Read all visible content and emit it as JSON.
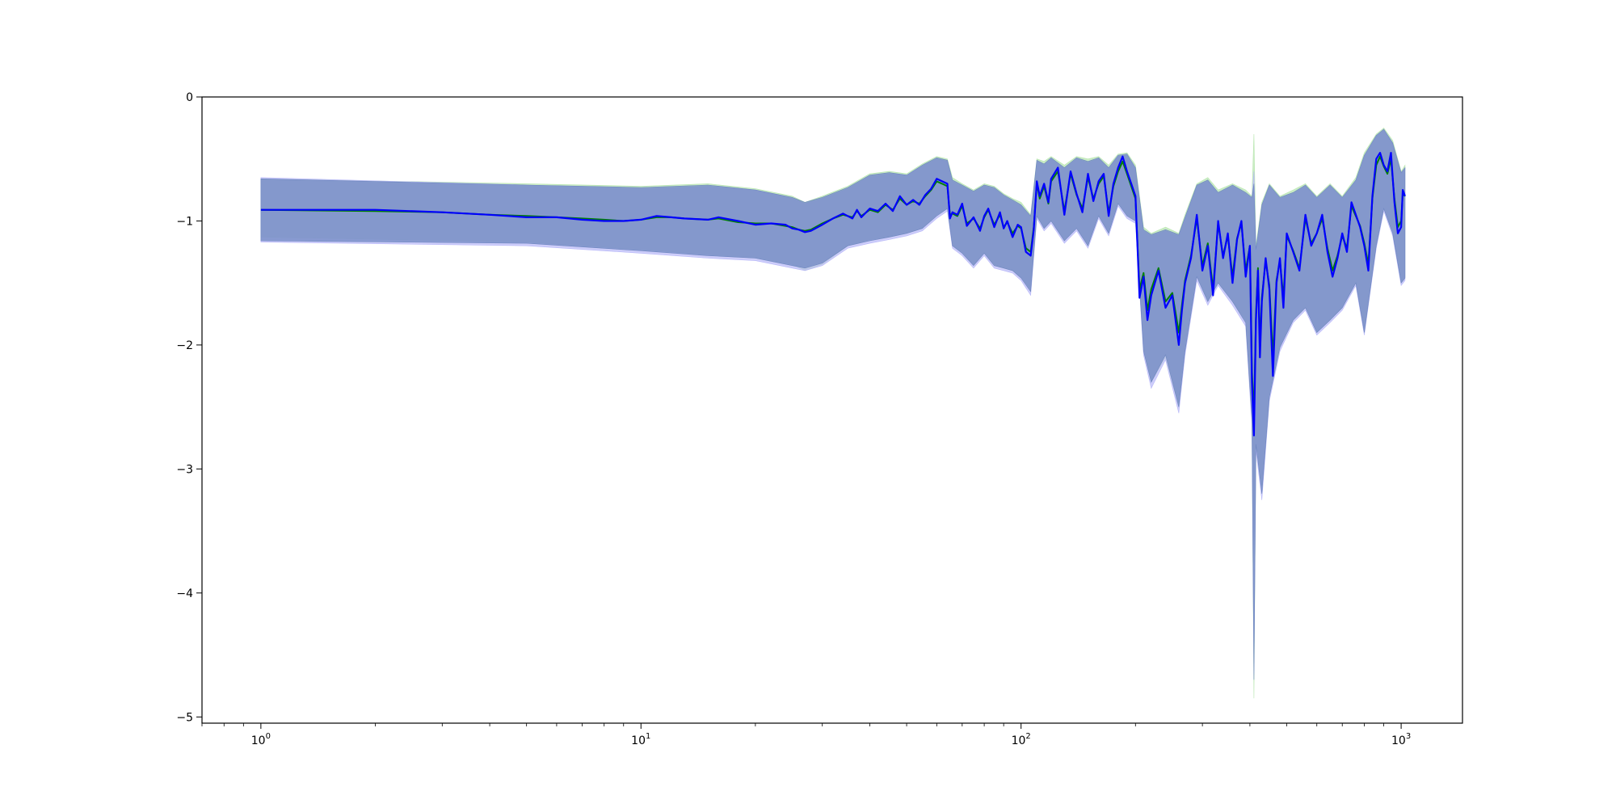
{
  "chart_data": {
    "type": "line",
    "title": "",
    "xlabel": "",
    "ylabel": "",
    "x_scale": "log",
    "xlim": [
      0.7,
      1450
    ],
    "ylim": [
      -5.05,
      0
    ],
    "x_ticks": [
      {
        "value": 1,
        "base": "10",
        "exp": "0"
      },
      {
        "value": 10,
        "base": "10",
        "exp": "1"
      },
      {
        "value": 100,
        "base": "10",
        "exp": "2"
      },
      {
        "value": 1000,
        "base": "10",
        "exp": "3"
      }
    ],
    "y_ticks": [
      {
        "value": 0,
        "label": "0"
      },
      {
        "value": -1,
        "label": "−1"
      },
      {
        "value": -2,
        "label": "−2"
      },
      {
        "value": -3,
        "label": "−3"
      },
      {
        "value": -4,
        "label": "−4"
      },
      {
        "value": -5,
        "label": "−5"
      }
    ],
    "grid": false,
    "legend": "none",
    "colors": {
      "blue_line": "#0000ff",
      "green_line": "#008000",
      "blue_band": "#6e86c0",
      "green_band": "#b8e6b0",
      "violet_band": "#b8b8f8"
    },
    "series": [
      {
        "color": "blue",
        "x": [
          1,
          2,
          3,
          4,
          5,
          6,
          7,
          8,
          9,
          10,
          11,
          12,
          13,
          15,
          16,
          18,
          20,
          22,
          24,
          25,
          26,
          27,
          28,
          30,
          32,
          34,
          36,
          37,
          38,
          40,
          42,
          44,
          46,
          48,
          50,
          52,
          54,
          56,
          58,
          60,
          62,
          64,
          65,
          66,
          68,
          70,
          72,
          75,
          78,
          80,
          82,
          85,
          88,
          90,
          92,
          95,
          98,
          100,
          103,
          106,
          108,
          110,
          112,
          115,
          118,
          120,
          125,
          130,
          135,
          140,
          145,
          150,
          155,
          160,
          165,
          170,
          175,
          180,
          185,
          190,
          195,
          200,
          205,
          210,
          215,
          220,
          230,
          240,
          250,
          260,
          265,
          270,
          280,
          290,
          300,
          310,
          320,
          330,
          340,
          350,
          360,
          370,
          380,
          390,
          400,
          405,
          410,
          415,
          420,
          425,
          430,
          440,
          450,
          460,
          470,
          480,
          490,
          500,
          520,
          540,
          560,
          580,
          600,
          620,
          640,
          660,
          680,
          700,
          720,
          740,
          760,
          780,
          800,
          820,
          840,
          860,
          880,
          900,
          920,
          940,
          960,
          980,
          1000,
          1010,
          1024
        ],
        "y": [
          -0.91,
          -0.91,
          -0.93,
          -0.95,
          -0.97,
          -0.97,
          -0.99,
          -1.0,
          -1.0,
          -0.99,
          -0.96,
          -0.97,
          -0.98,
          -0.99,
          -0.97,
          -1.0,
          -1.03,
          -1.02,
          -1.03,
          -1.06,
          -1.07,
          -1.09,
          -1.08,
          -1.03,
          -0.98,
          -0.94,
          -0.98,
          -0.91,
          -0.97,
          -0.9,
          -0.92,
          -0.86,
          -0.92,
          -0.8,
          -0.87,
          -0.83,
          -0.87,
          -0.79,
          -0.74,
          -0.66,
          -0.68,
          -0.7,
          -0.98,
          -0.93,
          -0.95,
          -0.86,
          -1.04,
          -0.97,
          -1.08,
          -0.96,
          -0.9,
          -1.05,
          -0.93,
          -1.06,
          -1.0,
          -1.13,
          -1.03,
          -1.05,
          -1.25,
          -1.28,
          -1.07,
          -0.68,
          -0.8,
          -0.7,
          -0.85,
          -0.66,
          -0.57,
          -0.95,
          -0.6,
          -0.78,
          -0.93,
          -0.62,
          -0.84,
          -0.68,
          -0.62,
          -0.96,
          -0.7,
          -0.57,
          -0.48,
          -0.6,
          -0.7,
          -0.8,
          -1.62,
          -1.45,
          -1.8,
          -1.6,
          -1.4,
          -1.7,
          -1.6,
          -2.0,
          -1.72,
          -1.5,
          -1.3,
          -0.95,
          -1.4,
          -1.2,
          -1.6,
          -1.0,
          -1.3,
          -1.1,
          -1.5,
          -1.15,
          -1.0,
          -1.45,
          -1.2,
          -2.3,
          -2.73,
          -1.8,
          -1.4,
          -2.1,
          -1.65,
          -1.3,
          -1.55,
          -2.25,
          -1.5,
          -1.3,
          -1.7,
          -1.1,
          -1.25,
          -1.4,
          -0.95,
          -1.2,
          -1.1,
          -0.95,
          -1.25,
          -1.45,
          -1.3,
          -1.1,
          -1.25,
          -0.85,
          -0.95,
          -1.05,
          -1.2,
          -1.4,
          -0.8,
          -0.5,
          -0.45,
          -0.55,
          -0.6,
          -0.45,
          -0.85,
          -1.1,
          -1.05,
          -0.75,
          -0.8
        ]
      },
      {
        "color": "green",
        "x": [
          1,
          2,
          3,
          4,
          5,
          6,
          7,
          8,
          9,
          10,
          11,
          12,
          13,
          15,
          16,
          18,
          20,
          22,
          24,
          25,
          26,
          27,
          28,
          30,
          32,
          34,
          36,
          37,
          38,
          40,
          42,
          44,
          46,
          48,
          50,
          52,
          54,
          56,
          58,
          60,
          62,
          64,
          65,
          66,
          68,
          70,
          72,
          75,
          78,
          80,
          82,
          85,
          88,
          90,
          92,
          95,
          98,
          100,
          103,
          106,
          108,
          110,
          112,
          115,
          118,
          120,
          125,
          130,
          135,
          140,
          145,
          150,
          155,
          160,
          165,
          170,
          175,
          180,
          185,
          190,
          195,
          200,
          205,
          210,
          215,
          220,
          230,
          240,
          250,
          260,
          265,
          270,
          280,
          290,
          300,
          310,
          320,
          330,
          340,
          350,
          360,
          370,
          380,
          390,
          400,
          405,
          410,
          415,
          420,
          425,
          430,
          440,
          450,
          460,
          470,
          480,
          490,
          500,
          520,
          540,
          560,
          580,
          600,
          620,
          640,
          660,
          680,
          700,
          720,
          740,
          760,
          780,
          800,
          820,
          840,
          860,
          880,
          900,
          920,
          940,
          960,
          980,
          1000,
          1010,
          1024
        ],
        "y": [
          -0.91,
          -0.92,
          -0.93,
          -0.95,
          -0.96,
          -0.97,
          -0.98,
          -0.99,
          -1.0,
          -0.99,
          -0.97,
          -0.97,
          -0.98,
          -0.99,
          -0.98,
          -1.01,
          -1.02,
          -1.02,
          -1.04,
          -1.05,
          -1.07,
          -1.08,
          -1.07,
          -1.02,
          -0.98,
          -0.95,
          -0.97,
          -0.92,
          -0.96,
          -0.91,
          -0.93,
          -0.87,
          -0.91,
          -0.82,
          -0.87,
          -0.84,
          -0.86,
          -0.8,
          -0.75,
          -0.68,
          -0.7,
          -0.72,
          -0.95,
          -0.94,
          -0.96,
          -0.88,
          -1.02,
          -0.98,
          -1.06,
          -0.97,
          -0.91,
          -1.03,
          -0.95,
          -1.05,
          -1.01,
          -1.1,
          -1.04,
          -1.06,
          -1.22,
          -1.25,
          -1.05,
          -0.7,
          -0.82,
          -0.72,
          -0.86,
          -0.68,
          -0.6,
          -0.92,
          -0.62,
          -0.79,
          -0.9,
          -0.65,
          -0.82,
          -0.7,
          -0.64,
          -0.93,
          -0.72,
          -0.6,
          -0.52,
          -0.62,
          -0.72,
          -0.82,
          -1.55,
          -1.42,
          -1.72,
          -1.55,
          -1.38,
          -1.65,
          -1.58,
          -1.9,
          -1.68,
          -1.48,
          -1.28,
          -0.98,
          -1.36,
          -1.18,
          -1.55,
          -1.02,
          -1.28,
          -1.12,
          -1.45,
          -1.14,
          -1.02,
          -1.4,
          -1.2,
          -2.2,
          -2.6,
          -1.75,
          -1.38,
          -2.0,
          -1.62,
          -1.32,
          -1.52,
          -2.1,
          -1.48,
          -1.32,
          -1.62,
          -1.12,
          -1.24,
          -1.38,
          -0.98,
          -1.18,
          -1.1,
          -0.98,
          -1.22,
          -1.4,
          -1.28,
          -1.12,
          -1.22,
          -0.88,
          -0.96,
          -1.04,
          -1.18,
          -1.35,
          -0.82,
          -0.55,
          -0.48,
          -0.56,
          -0.62,
          -0.5,
          -0.82,
          -1.05,
          -1.0,
          -0.78,
          -0.8
        ]
      }
    ],
    "bands": [
      {
        "color": "green",
        "x": [
          1,
          5,
          10,
          15,
          20,
          25,
          27,
          30,
          35,
          40,
          45,
          50,
          55,
          60,
          64,
          66,
          70,
          75,
          80,
          85,
          90,
          95,
          100,
          106,
          110,
          115,
          120,
          130,
          140,
          150,
          160,
          170,
          180,
          190,
          200,
          210,
          220,
          240,
          260,
          270,
          290,
          310,
          330,
          360,
          390,
          405,
          410,
          415,
          430,
          450,
          480,
          520,
          560,
          600,
          650,
          700,
          760,
          800,
          860,
          900,
          950,
          1000,
          1024
        ],
        "upper": [
          -0.66,
          -0.7,
          -0.72,
          -0.7,
          -0.74,
          -0.8,
          -0.85,
          -0.8,
          -0.72,
          -0.62,
          -0.6,
          -0.62,
          -0.54,
          -0.48,
          -0.5,
          -0.65,
          -0.7,
          -0.75,
          -0.7,
          -0.72,
          -0.78,
          -0.82,
          -0.85,
          -0.95,
          -0.5,
          -0.52,
          -0.48,
          -0.55,
          -0.48,
          -0.5,
          -0.48,
          -0.55,
          -0.46,
          -0.45,
          -0.55,
          -1.05,
          -1.1,
          -1.05,
          -1.1,
          -0.95,
          -0.7,
          -0.65,
          -0.75,
          -0.7,
          -0.75,
          -0.8,
          -0.3,
          -1.2,
          -0.85,
          -0.7,
          -0.8,
          -0.75,
          -0.7,
          -0.8,
          -0.7,
          -0.8,
          -0.65,
          -0.45,
          -0.3,
          -0.25,
          -0.35,
          -0.6,
          -0.55
        ],
        "lower": [
          -1.13,
          -1.17,
          -1.23,
          -1.27,
          -1.3,
          -1.35,
          -1.4,
          -1.35,
          -1.2,
          -1.15,
          -1.13,
          -1.1,
          -1.06,
          -0.95,
          -0.9,
          -1.2,
          -1.25,
          -1.35,
          -1.25,
          -1.35,
          -1.38,
          -1.4,
          -1.45,
          -1.55,
          -0.95,
          -1.05,
          -1.0,
          -1.15,
          -1.05,
          -1.2,
          -0.95,
          -1.1,
          -0.85,
          -0.95,
          -1.0,
          -2.05,
          -2.3,
          -2.1,
          -2.5,
          -2.05,
          -1.45,
          -1.65,
          -1.5,
          -1.65,
          -1.8,
          -2.6,
          -4.85,
          -2.8,
          -3.2,
          -2.4,
          -2.0,
          -1.8,
          -1.7,
          -1.9,
          -1.8,
          -1.7,
          -1.5,
          -1.9,
          -1.2,
          -0.9,
          -1.1,
          -1.5,
          -1.45
        ]
      },
      {
        "color": "violet",
        "x": [
          1,
          5,
          10,
          15,
          20,
          25,
          27,
          30,
          35,
          40,
          45,
          50,
          55,
          60,
          64,
          66,
          70,
          75,
          80,
          85,
          90,
          95,
          100,
          106,
          110,
          115,
          120,
          130,
          140,
          150,
          160,
          170,
          180,
          190,
          200,
          210,
          220,
          240,
          260,
          270,
          290,
          310,
          330,
          360,
          390,
          405,
          410,
          415,
          430,
          450,
          480,
          520,
          560,
          600,
          650,
          700,
          760,
          800,
          860,
          900,
          950,
          1000,
          1024
        ],
        "upper": [
          -0.65,
          -0.71,
          -0.74,
          -0.72,
          -0.75,
          -0.82,
          -0.86,
          -0.82,
          -0.74,
          -0.64,
          -0.62,
          -0.63,
          -0.56,
          -0.5,
          -0.52,
          -0.68,
          -0.72,
          -0.77,
          -0.72,
          -0.74,
          -0.8,
          -0.84,
          -0.88,
          -0.97,
          -0.52,
          -0.55,
          -0.5,
          -0.58,
          -0.5,
          -0.53,
          -0.5,
          -0.58,
          -0.48,
          -0.47,
          -0.58,
          -1.08,
          -1.12,
          -1.08,
          -1.12,
          -0.98,
          -0.72,
          -0.68,
          -0.78,
          -0.72,
          -0.78,
          -0.82,
          -0.6,
          -1.25,
          -0.88,
          -0.72,
          -0.82,
          -0.78,
          -0.72,
          -0.82,
          -0.72,
          -0.82,
          -0.68,
          -0.48,
          -0.32,
          -0.27,
          -0.38,
          -0.62,
          -0.58
        ],
        "lower": [
          -1.17,
          -1.2,
          -1.26,
          -1.3,
          -1.32,
          -1.38,
          -1.4,
          -1.36,
          -1.22,
          -1.18,
          -1.15,
          -1.12,
          -1.08,
          -0.98,
          -0.92,
          -1.22,
          -1.28,
          -1.38,
          -1.28,
          -1.38,
          -1.4,
          -1.42,
          -1.48,
          -1.6,
          -0.98,
          -1.08,
          -1.02,
          -1.18,
          -1.08,
          -1.22,
          -0.98,
          -1.12,
          -0.88,
          -0.98,
          -1.02,
          -2.08,
          -2.35,
          -2.12,
          -2.55,
          -2.08,
          -1.48,
          -1.68,
          -1.52,
          -1.68,
          -1.85,
          -2.65,
          -4.65,
          -2.85,
          -3.25,
          -2.45,
          -2.05,
          -1.82,
          -1.72,
          -1.92,
          -1.82,
          -1.72,
          -1.52,
          -1.92,
          -1.22,
          -0.92,
          -1.12,
          -1.52,
          -1.48
        ]
      },
      {
        "color": "blue",
        "x": [
          1,
          5,
          10,
          15,
          20,
          25,
          27,
          30,
          35,
          40,
          45,
          50,
          55,
          60,
          64,
          66,
          70,
          75,
          80,
          85,
          90,
          95,
          100,
          106,
          110,
          115,
          120,
          130,
          140,
          150,
          160,
          170,
          180,
          190,
          200,
          210,
          220,
          240,
          260,
          270,
          290,
          310,
          330,
          360,
          390,
          405,
          410,
          415,
          430,
          450,
          480,
          520,
          560,
          600,
          650,
          700,
          760,
          800,
          860,
          900,
          950,
          1000,
          1024
        ],
        "upper": [
          -0.66,
          -0.71,
          -0.73,
          -0.71,
          -0.75,
          -0.81,
          -0.85,
          -0.81,
          -0.73,
          -0.63,
          -0.61,
          -0.63,
          -0.55,
          -0.49,
          -0.51,
          -0.67,
          -0.71,
          -0.76,
          -0.71,
          -0.73,
          -0.79,
          -0.83,
          -0.87,
          -0.96,
          -0.51,
          -0.54,
          -0.49,
          -0.57,
          -0.49,
          -0.52,
          -0.49,
          -0.57,
          -0.47,
          -0.46,
          -0.57,
          -1.07,
          -1.11,
          -1.07,
          -1.11,
          -0.97,
          -0.71,
          -0.67,
          -0.77,
          -0.71,
          -0.77,
          -0.81,
          -0.7,
          -1.23,
          -0.87,
          -0.71,
          -0.81,
          -0.77,
          -0.71,
          -0.81,
          -0.71,
          -0.81,
          -0.67,
          -0.47,
          -0.31,
          -0.26,
          -0.37,
          -0.61,
          -0.57
        ],
        "lower": [
          -1.16,
          -1.18,
          -1.24,
          -1.28,
          -1.3,
          -1.36,
          -1.38,
          -1.34,
          -1.2,
          -1.16,
          -1.13,
          -1.1,
          -1.06,
          -0.96,
          -0.9,
          -1.2,
          -1.26,
          -1.36,
          -1.26,
          -1.36,
          -1.38,
          -1.4,
          -1.46,
          -1.57,
          -0.96,
          -1.06,
          -1.0,
          -1.16,
          -1.06,
          -1.2,
          -0.96,
          -1.1,
          -0.86,
          -0.96,
          -1.0,
          -2.05,
          -2.3,
          -2.08,
          -2.5,
          -2.05,
          -1.45,
          -1.65,
          -1.5,
          -1.65,
          -1.82,
          -2.6,
          -4.7,
          -2.8,
          -3.2,
          -2.42,
          -2.02,
          -1.8,
          -1.7,
          -1.9,
          -1.8,
          -1.7,
          -1.5,
          -1.9,
          -1.2,
          -0.9,
          -1.1,
          -1.5,
          -1.46
        ]
      }
    ]
  }
}
